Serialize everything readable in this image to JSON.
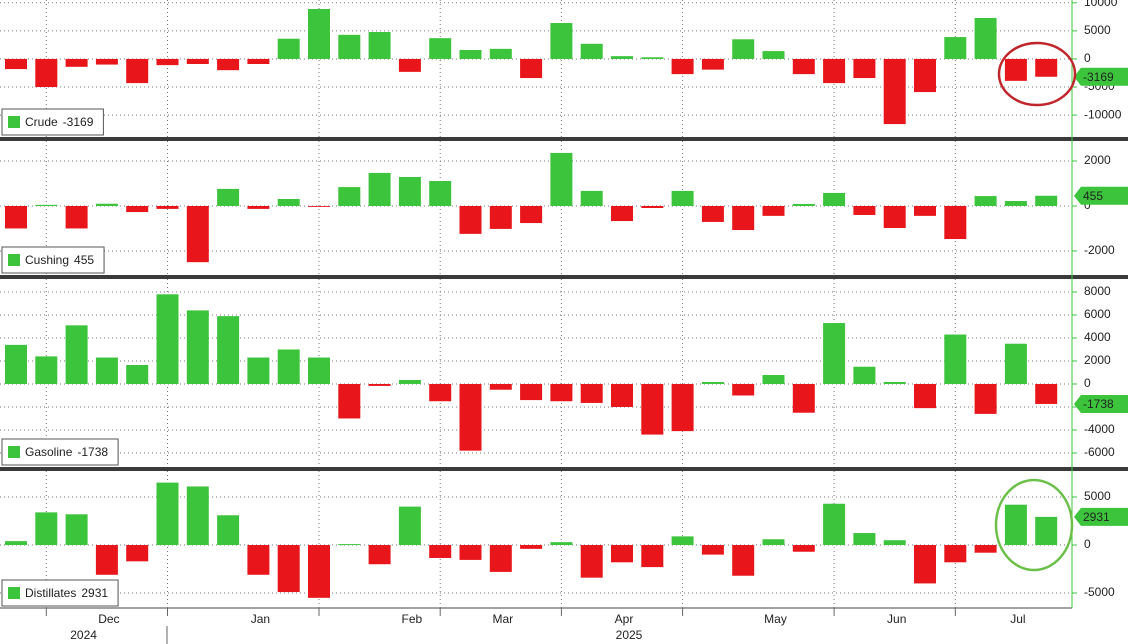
{
  "chart_data": [
    {
      "type": "bar",
      "grid": true,
      "negative_color": "#e8161b",
      "series": [
        {
          "name": "Crude",
          "color": "#3cc43c",
          "values": [
            -1800,
            -5000,
            -1400,
            -1000,
            -4300,
            -1100,
            -900,
            -2000,
            -900,
            3600,
            8900,
            4300,
            4800,
            -2300,
            3700,
            1600,
            1800,
            -3400,
            6400,
            2700,
            500,
            300,
            -2700,
            -1900,
            3500,
            1400,
            -2700,
            -4300,
            -3400,
            -11600,
            -5900,
            3900,
            7300,
            -3900,
            -3169
          ]
        }
      ],
      "ylim": [
        -13900,
        10500
      ],
      "yticks": [
        10000,
        5000,
        0,
        -5000,
        -10000
      ]
    },
    {
      "type": "bar",
      "grid": true,
      "negative_color": "#e8161b",
      "series": [
        {
          "name": "Cushing",
          "color": "#3cc43c",
          "values": [
            -1000,
            50,
            -1000,
            100,
            -270,
            -130,
            -2500,
            760,
            -130,
            310,
            -40,
            840,
            1470,
            1290,
            1110,
            -1240,
            -1020,
            -760,
            2360,
            670,
            -670,
            -90,
            670,
            -710,
            -1070,
            -440,
            90,
            580,
            -400,
            -980,
            -440,
            -1470,
            440,
            220,
            455
          ]
        }
      ],
      "ylim": [
        -3070,
        2890
      ],
      "yticks": [
        2000,
        0,
        -2000
      ]
    },
    {
      "type": "bar",
      "grid": true,
      "negative_color": "#e8161b",
      "series": [
        {
          "name": "Gasoline",
          "color": "#3cc43c",
          "values": [
            3400,
            2400,
            5100,
            2300,
            1650,
            7800,
            6400,
            5900,
            2300,
            3000,
            2300,
            -3000,
            -170,
            350,
            -1500,
            -5800,
            -500,
            -1400,
            -1500,
            -1650,
            -2000,
            -4400,
            -4100,
            170,
            -1000,
            780,
            -2500,
            5300,
            1500,
            170,
            -2100,
            4300,
            -2600,
            3500,
            -1738
          ]
        }
      ],
      "ylim": [
        -7220,
        9130
      ],
      "yticks": [
        8000,
        6000,
        4000,
        2000,
        0,
        -2000,
        -4000,
        -6000
      ]
    },
    {
      "type": "bar",
      "grid": true,
      "negative_color": "#e8161b",
      "series": [
        {
          "name": "Distillates",
          "color": "#3cc43c",
          "values": [
            400,
            3400,
            3200,
            -3100,
            -1700,
            6500,
            6100,
            3100,
            -3100,
            -4900,
            -5500,
            100,
            -2000,
            4000,
            -1350,
            -1550,
            -2800,
            -400,
            300,
            -3400,
            -1800,
            -2300,
            900,
            -1000,
            -3200,
            600,
            -700,
            4300,
            1250,
            500,
            -4000,
            -1800,
            -800,
            4200,
            2931
          ]
        }
      ],
      "ylim": [
        -6560,
        7710
      ],
      "yticks": [
        5000,
        0,
        -5000
      ],
      "categories": [
        null,
        null,
        null,
        "Dec",
        null,
        null,
        null,
        null,
        "Jan",
        null,
        null,
        null,
        null,
        "Feb",
        null,
        null,
        "Mar",
        null,
        null,
        null,
        "Apr",
        null,
        null,
        null,
        null,
        "May",
        null,
        null,
        null,
        "Jun",
        null,
        null,
        null,
        "Jul",
        null
      ],
      "years": [
        null,
        null,
        "2024",
        null,
        null,
        null,
        null,
        null,
        null,
        null,
        null,
        null,
        null,
        null,
        null,
        null,
        null,
        null,
        null,
        null,
        "2025",
        null,
        null,
        null,
        null,
        null,
        null,
        null,
        null,
        null,
        null,
        null,
        null,
        null,
        null
      ]
    }
  ]
}
